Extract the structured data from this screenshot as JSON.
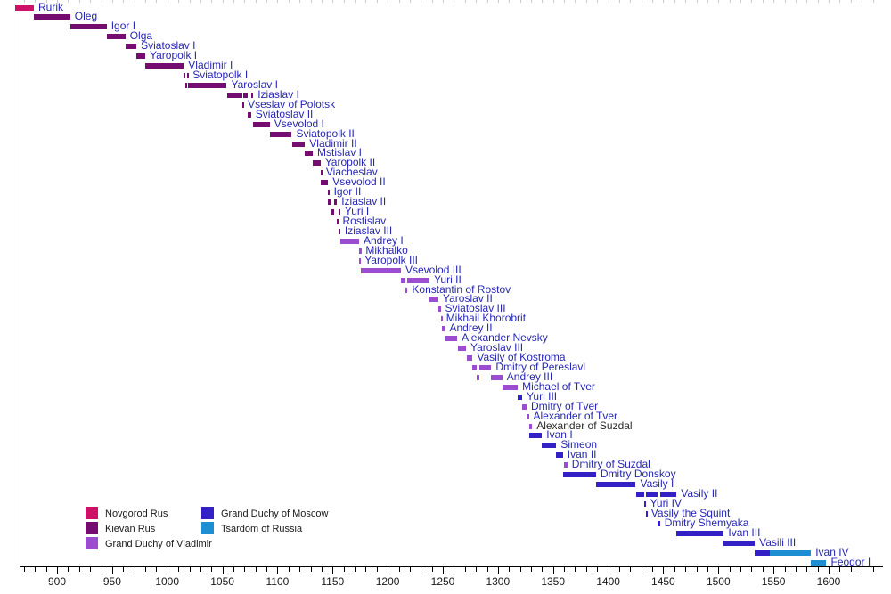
{
  "chart_data": {
    "type": "bar",
    "variant": "horizontal-timeline-gantt",
    "title": "",
    "xlabel": "",
    "ylabel": "",
    "grid": false,
    "legend_position": "bottom-left-inside",
    "x_axis": {
      "tick_label_min": 900,
      "tick_label_max": 1600,
      "major_step": 50,
      "minor_step": 10,
      "minor_tick_min": 870,
      "minor_tick_max": 1640,
      "tick_labels": [
        "900",
        "950",
        "1000",
        "1050",
        "1100",
        "1150",
        "1200",
        "1250",
        "1300",
        "1350",
        "1400",
        "1450",
        "1500",
        "1550",
        "1600"
      ]
    },
    "colors": {
      "novgorod": "#cc1166",
      "kievan": "#750d70",
      "vladimir": "#9c4ccf",
      "moscow": "#3421c6",
      "tsardom": "#1e8ed2",
      "label": "#2727b5",
      "label_dark": "#2b2b2b",
      "axis": "#000000"
    },
    "legend": {
      "items": [
        {
          "label": "Novgorod Rus",
          "color_key": "novgorod"
        },
        {
          "label": "Kievan Rus",
          "color_key": "kievan"
        },
        {
          "label": "Grand Duchy of Vladimir",
          "color_key": "vladimir"
        },
        {
          "label": "Grand Duchy of Moscow",
          "color_key": "moscow"
        },
        {
          "label": "Tsardom of Russia",
          "color_key": "tsardom"
        }
      ]
    },
    "rulers": [
      {
        "name": "Rurik",
        "segments": [
          [
            862,
            879,
            "novgorod"
          ]
        ]
      },
      {
        "name": "Oleg",
        "segments": [
          [
            879,
            912,
            "kievan"
          ]
        ]
      },
      {
        "name": "Igor I",
        "segments": [
          [
            912,
            945,
            "kievan"
          ]
        ]
      },
      {
        "name": "Olga",
        "segments": [
          [
            945,
            962,
            "kievan"
          ]
        ]
      },
      {
        "name": "Sviatoslav I",
        "segments": [
          [
            962,
            972,
            "kievan"
          ]
        ]
      },
      {
        "name": "Yaropolk I",
        "segments": [
          [
            972,
            980,
            "kievan"
          ]
        ]
      },
      {
        "name": "Vladimir I",
        "segments": [
          [
            980,
            1015,
            "kievan"
          ]
        ]
      },
      {
        "name": "Sviatopolk I",
        "segments": [
          [
            1015,
            1016,
            "kievan"
          ],
          [
            1018,
            1019,
            "kievan"
          ]
        ]
      },
      {
        "name": "Yaroslav I",
        "segments": [
          [
            1016,
            1018,
            "kievan"
          ],
          [
            1019,
            1054,
            "kievan"
          ]
        ]
      },
      {
        "name": "Iziaslav I",
        "segments": [
          [
            1054,
            1068,
            "kievan"
          ],
          [
            1069,
            1073,
            "kievan"
          ],
          [
            1076,
            1078,
            "kievan"
          ]
        ]
      },
      {
        "name": "Vseslav of Polotsk",
        "segments": [
          [
            1068,
            1069,
            "kievan"
          ]
        ]
      },
      {
        "name": "Sviatoslav II",
        "segments": [
          [
            1073,
            1076,
            "kievan"
          ]
        ]
      },
      {
        "name": "Vsevolod I",
        "segments": [
          [
            1078,
            1093,
            "kievan"
          ]
        ]
      },
      {
        "name": "Sviatopolk II",
        "segments": [
          [
            1093,
            1113,
            "kievan"
          ]
        ]
      },
      {
        "name": "Vladimir II",
        "segments": [
          [
            1113,
            1125,
            "kievan"
          ]
        ]
      },
      {
        "name": "Mstislav I",
        "segments": [
          [
            1125,
            1132,
            "kievan"
          ]
        ]
      },
      {
        "name": "Yaropolk II",
        "segments": [
          [
            1132,
            1139,
            "kievan"
          ]
        ]
      },
      {
        "name": "Viacheslav",
        "segments": [
          [
            1139,
            1140,
            "kievan"
          ]
        ]
      },
      {
        "name": "Vsevolod II",
        "segments": [
          [
            1139,
            1146,
            "kievan"
          ]
        ]
      },
      {
        "name": "Igor II",
        "segments": [
          [
            1146,
            1147,
            "kievan"
          ]
        ]
      },
      {
        "name": "Iziaslav II",
        "segments": [
          [
            1146,
            1149,
            "kievan"
          ],
          [
            1151,
            1154,
            "kievan"
          ]
        ]
      },
      {
        "name": "Yuri I",
        "segments": [
          [
            1149,
            1151,
            "kievan"
          ],
          [
            1155,
            1157,
            "kievan"
          ]
        ]
      },
      {
        "name": "Rostislav",
        "segments": [
          [
            1154,
            1155,
            "kievan"
          ]
        ]
      },
      {
        "name": "Iziaslav III",
        "segments": [
          [
            1155,
            1157,
            "kievan"
          ]
        ]
      },
      {
        "name": "Andrey I",
        "segments": [
          [
            1157,
            1174,
            "vladimir"
          ]
        ]
      },
      {
        "name": "Mikhalko",
        "segments": [
          [
            1174,
            1176,
            "vladimir"
          ]
        ]
      },
      {
        "name": "Yaropolk III",
        "segments": [
          [
            1174,
            1175,
            "vladimir"
          ]
        ]
      },
      {
        "name": "Vsevolod III",
        "segments": [
          [
            1176,
            1212,
            "vladimir"
          ]
        ]
      },
      {
        "name": "Yuri II",
        "segments": [
          [
            1212,
            1216,
            "vladimir"
          ],
          [
            1218,
            1238,
            "vladimir"
          ]
        ]
      },
      {
        "name": "Konstantin of Rostov",
        "segments": [
          [
            1216,
            1218,
            "vladimir"
          ]
        ]
      },
      {
        "name": "Yaroslav II",
        "segments": [
          [
            1238,
            1246,
            "vladimir"
          ]
        ]
      },
      {
        "name": "Sviatoslav III",
        "segments": [
          [
            1246,
            1248,
            "vladimir"
          ]
        ]
      },
      {
        "name": "Mikhail Khorobrit",
        "segments": [
          [
            1248,
            1249,
            "vladimir"
          ]
        ]
      },
      {
        "name": "Andrey II",
        "segments": [
          [
            1249,
            1252,
            "vladimir"
          ]
        ]
      },
      {
        "name": "Alexander Nevsky",
        "segments": [
          [
            1252,
            1263,
            "vladimir"
          ]
        ]
      },
      {
        "name": "Yaroslav III",
        "segments": [
          [
            1264,
            1271,
            "vladimir"
          ]
        ]
      },
      {
        "name": "Vasily of Kostroma",
        "segments": [
          [
            1272,
            1277,
            "vladimir"
          ]
        ]
      },
      {
        "name": "Dmitry of Pereslavl",
        "segments": [
          [
            1277,
            1281,
            "vladimir"
          ],
          [
            1283,
            1294,
            "vladimir"
          ]
        ]
      },
      {
        "name": "Andrey III",
        "segments": [
          [
            1281,
            1283,
            "vladimir"
          ],
          [
            1294,
            1304,
            "vladimir"
          ]
        ]
      },
      {
        "name": "Michael of Tver",
        "segments": [
          [
            1304,
            1318,
            "vladimir"
          ]
        ]
      },
      {
        "name": "Yuri III",
        "segments": [
          [
            1318,
            1322,
            "moscow"
          ]
        ]
      },
      {
        "name": "Dmitry of Tver",
        "segments": [
          [
            1322,
            1326,
            "vladimir"
          ]
        ]
      },
      {
        "name": "Alexander of Tver",
        "segments": [
          [
            1326,
            1328,
            "vladimir"
          ]
        ]
      },
      {
        "name": "Alexander of Suzdal",
        "label_color": "dark",
        "segments": [
          [
            1328,
            1331,
            "vladimir"
          ]
        ]
      },
      {
        "name": "Ivan I",
        "segments": [
          [
            1328,
            1340,
            "moscow"
          ]
        ]
      },
      {
        "name": "Simeon",
        "segments": [
          [
            1340,
            1353,
            "moscow"
          ]
        ]
      },
      {
        "name": "Ivan II",
        "segments": [
          [
            1353,
            1359,
            "moscow"
          ]
        ]
      },
      {
        "name": "Dmitry of Suzdal",
        "segments": [
          [
            1360,
            1363,
            "vladimir"
          ]
        ]
      },
      {
        "name": "Dmitry Donskoy",
        "segments": [
          [
            1359,
            1389,
            "moscow"
          ]
        ]
      },
      {
        "name": "Vasily I",
        "segments": [
          [
            1389,
            1425,
            "moscow"
          ]
        ]
      },
      {
        "name": "Vasily II",
        "segments": [
          [
            1425,
            1433,
            "moscow"
          ],
          [
            1434,
            1445,
            "moscow"
          ],
          [
            1447,
            1462,
            "moscow"
          ]
        ]
      },
      {
        "name": "Yuri IV",
        "segments": [
          [
            1433,
            1434,
            "moscow"
          ]
        ]
      },
      {
        "name": "Vasily the Squint",
        "segments": [
          [
            1434,
            1435,
            "moscow"
          ]
        ]
      },
      {
        "name": "Dmitry Shemyaka",
        "segments": [
          [
            1445,
            1447,
            "moscow"
          ]
        ]
      },
      {
        "name": "Ivan III",
        "segments": [
          [
            1462,
            1505,
            "moscow"
          ]
        ]
      },
      {
        "name": "Vasili III",
        "segments": [
          [
            1505,
            1533,
            "moscow"
          ]
        ]
      },
      {
        "name": "Ivan IV",
        "segments": [
          [
            1533,
            1547,
            "moscow"
          ],
          [
            1547,
            1584,
            "tsardom"
          ]
        ]
      },
      {
        "name": "Feodor I",
        "segments": [
          [
            1584,
            1598,
            "tsardom"
          ]
        ]
      }
    ]
  }
}
